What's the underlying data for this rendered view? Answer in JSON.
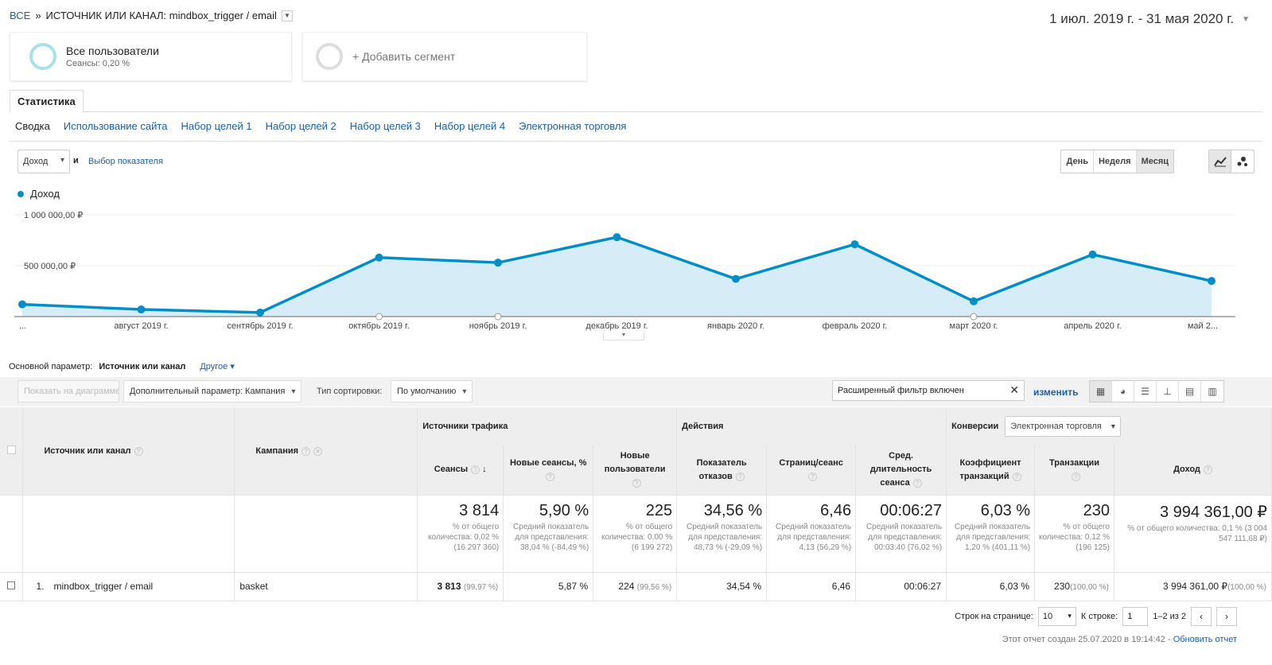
{
  "breadcrumb": {
    "all": "ВСЕ",
    "sep": "»",
    "path": "ИСТОЧНИК ИЛИ КАНАЛ: mindbox_trigger / email"
  },
  "date_range": "1 июл. 2019 г. - 31 мая 2020 г.",
  "segments": {
    "current": {
      "title": "Все пользователи",
      "subtitle": "Сеансы: 0,20 %"
    },
    "add": "+ Добавить сегмент"
  },
  "tabs": {
    "main": "Статистика"
  },
  "subtabs": [
    "Сводка",
    "Использование сайта",
    "Набор целей 1",
    "Набор целей 2",
    "Набор целей 3",
    "Набор целей 4",
    "Электронная торговля"
  ],
  "metric": {
    "selected": "Доход",
    "and": "и",
    "pick": "Выбор показателя"
  },
  "period": [
    "День",
    "Неделя",
    "Месяц"
  ],
  "chart_data": {
    "type": "area",
    "series": [
      {
        "name": "Доход",
        "values": [
          120000,
          70000,
          40000,
          580000,
          530000,
          780000,
          370000,
          710000,
          150000,
          610000,
          350000
        ]
      }
    ],
    "x_labels": [
      "...",
      "август 2019 г.",
      "сентябрь 2019 г.",
      "октябрь 2019 г.",
      "ноябрь 2019 г.",
      "декабрь 2019 г.",
      "январь 2020 г.",
      "февраль 2020 г.",
      "март 2020 г.",
      "апрель 2020 г.",
      "май 2..."
    ],
    "y_ticks": [
      "1 000 000,00 ₽",
      "500 000,00 ₽"
    ],
    "y_tick_values": [
      1000000,
      500000
    ],
    "ylim": [
      0,
      1000000
    ],
    "color": "#058dc7",
    "fill": "#d6edf8"
  },
  "primary": {
    "label": "Основной параметр:",
    "value": "Источник или канал",
    "other": "Другое"
  },
  "toolbar": {
    "plot": "Показать на диаграмме",
    "secondary": "Дополнительный параметр: Кампания",
    "sort_label": "Тип сортировки:",
    "sort_value": "По умолчанию",
    "filter": "Расширенный фильтр включен",
    "edit": "изменить"
  },
  "table": {
    "groups": {
      "traffic": "Источники трафика",
      "actions": "Действия",
      "conversions": "Конверсии",
      "conv_select": "Электронная торговля"
    },
    "headers": {
      "source": "Источник или канал",
      "campaign": "Кампания",
      "sessions": "Сеансы",
      "new_sessions": "Новые сеансы, %",
      "new_users": "Новые пользователи",
      "bounce": "Показатель отказов",
      "pages": "Страниц/сеанс",
      "duration": "Сред. длительность сеанса",
      "conv_rate": "Коэффициент транзакций",
      "transactions": "Транзакции",
      "revenue": "Доход"
    },
    "totals": {
      "sessions": {
        "v": "3 814",
        "s": "% от общего количества: 0,02 % (16 297 360)"
      },
      "new_sessions": {
        "v": "5,90 %",
        "s": "Средний показатель для представления: 38,04 % (-84,49 %)"
      },
      "new_users": {
        "v": "225",
        "s": "% от общего количества: 0,00 % (6 199 272)"
      },
      "bounce": {
        "v": "34,56 %",
        "s": "Средний показатель для представления: 48,73 % (-29,09 %)"
      },
      "pages": {
        "v": "6,46",
        "s": "Средний показатель для представления: 4,13 (56,29 %)"
      },
      "duration": {
        "v": "00:06:27",
        "s": "Средний показатель для представления: 00:03:40 (76,02 %)"
      },
      "conv_rate": {
        "v": "6,03 %",
        "s": "Средний показатель для представления: 1,20 % (401,11 %)"
      },
      "transactions": {
        "v": "230",
        "s": "% от общего количества: 0,12 % (196 125)"
      },
      "revenue": {
        "v": "3 994 361,00 ₽",
        "s": "% от общего количества: 0,1 % (3 004 547 111,68 ₽)"
      }
    },
    "rows": [
      {
        "index": "1.",
        "source": "mindbox_trigger / email",
        "campaign": "basket",
        "sessions": "3 813",
        "sessions_pct": "(99,97 %)",
        "new_sessions": "5,87 %",
        "new_users": "224",
        "new_users_pct": "(99,56 %)",
        "bounce": "34,54 %",
        "pages": "6,46",
        "duration": "00:06:27",
        "conv_rate": "6,03 %",
        "transactions": "230",
        "transactions_pct": "(100,00 %)",
        "revenue": "3 994 361,00 ₽",
        "revenue_pct": "(100,00 %)"
      }
    ]
  },
  "pager": {
    "rows_label": "Строк на странице:",
    "rows_value": "10",
    "goto_label": "К строке:",
    "goto_value": "1",
    "range": "1–2 из 2"
  },
  "footer": {
    "text": "Этот отчет создан 25.07.2020 в 19:14:42 - ",
    "refresh": "Обновить отчет"
  }
}
